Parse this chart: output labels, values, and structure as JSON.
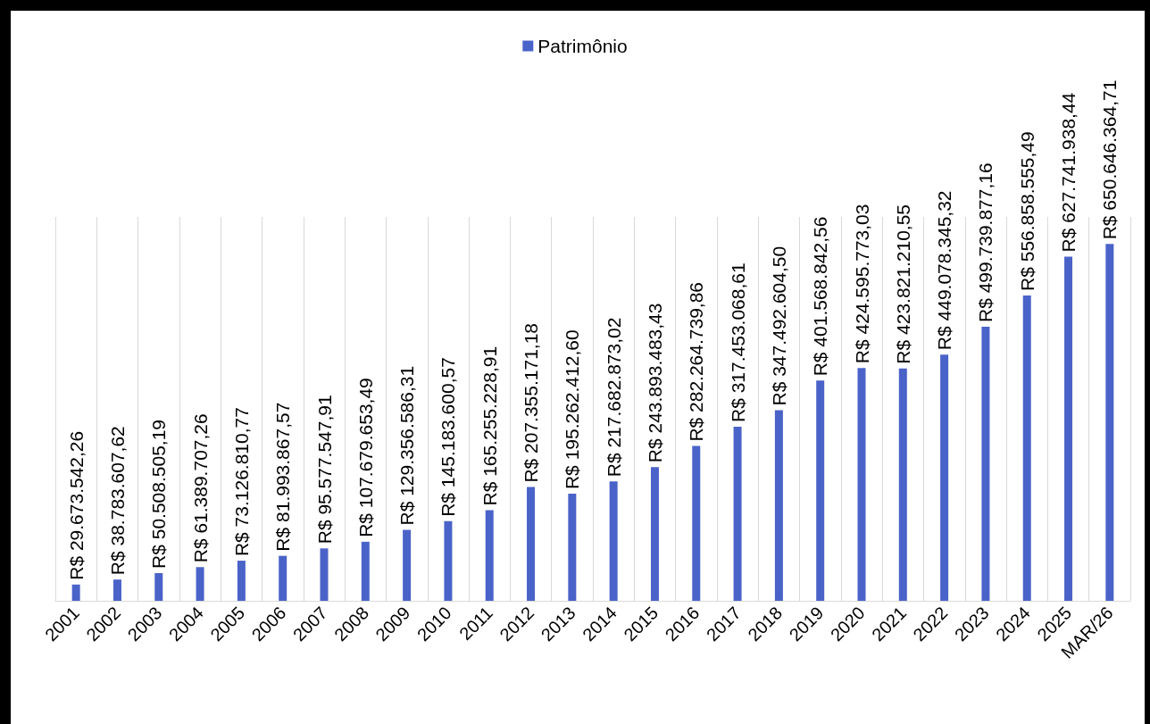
{
  "chart_data": {
    "type": "bar",
    "categories": [
      "2001",
      "2002",
      "2003",
      "2004",
      "2005",
      "2006",
      "2007",
      "2008",
      "2009",
      "2010",
      "2011",
      "2012",
      "2013",
      "2014",
      "2015",
      "2016",
      "2017",
      "2018",
      "2019",
      "2020",
      "2021",
      "2022",
      "2023",
      "2024",
      "2025",
      "MAR/26"
    ],
    "series": [
      {
        "name": "Patrimônio",
        "color": "#4a63c8",
        "values": [
          29673542.26,
          38783607.62,
          50508505.19,
          61389707.26,
          73126810.77,
          81993867.57,
          95577547.91,
          107679653.49,
          129356586.31,
          145183600.57,
          165255228.91,
          207355171.18,
          195262412.6,
          217682873.02,
          243893483.43,
          282264739.86,
          317453068.61,
          347492604.5,
          401568842.56,
          424595773.03,
          423821210.55,
          449078345.32,
          499739877.16,
          556858555.49,
          627741938.44,
          650646364.71
        ],
        "value_labels": [
          "R$ 29.673.542,26",
          "R$ 38.783.607,62",
          "R$ 50.508.505,19",
          "R$ 61.389.707,26",
          "R$ 73.126.810,77",
          "R$ 81.993.867,57",
          "R$ 95.577.547,91",
          "R$ 107.679.653,49",
          "R$ 129.356.586,31",
          "R$ 145.183.600,57",
          "R$ 165.255.228,91",
          "R$ 207.355.171,18",
          "R$ 195.262.412,60",
          "R$ 217.682.873,02",
          "R$ 243.893.483,43",
          "R$ 282.264.739,86",
          "R$ 317.453.068,61",
          "R$ 347.492.604,50",
          "R$ 401.568.842,56",
          "R$ 424.595.773,03",
          "R$ 423.821.210,55",
          "R$ 449.078.345,32",
          "R$ 499.739.877,16",
          "R$ 556.858.555,49",
          "R$ 627.741.938,44",
          "R$ 650.646.364,71"
        ]
      }
    ],
    "ylim": [
      0,
      700000000
    ],
    "tick_labels": "x",
    "grid": "x",
    "legend": "top"
  }
}
